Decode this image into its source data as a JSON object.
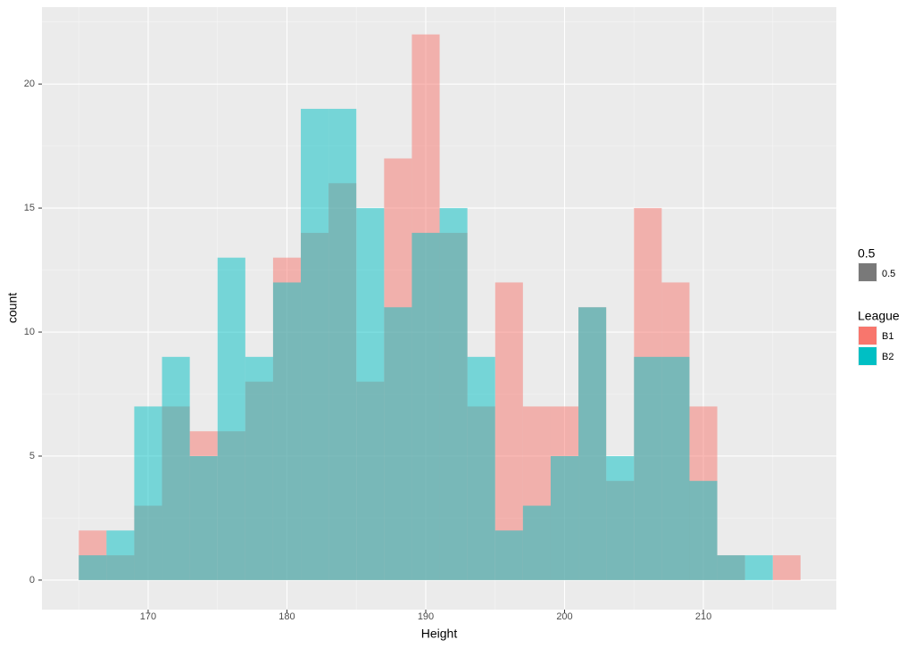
{
  "chart_data": {
    "type": "histogram",
    "x_label": "Height",
    "y_label": "count",
    "bins": [
      165,
      167,
      169,
      171,
      173,
      175,
      177,
      179,
      181,
      183,
      185,
      187,
      189,
      191,
      193,
      195,
      197,
      199,
      201,
      203,
      205,
      207,
      209,
      211,
      213,
      215,
      217
    ],
    "series": [
      {
        "name": "B1",
        "color": "#F8766D",
        "values": [
          2,
          1,
          3,
          7,
          6,
          6,
          8,
          13,
          14,
          16,
          8,
          17,
          22,
          14,
          7,
          12,
          7,
          7,
          11,
          4,
          15,
          12,
          7,
          1,
          0,
          1
        ]
      },
      {
        "name": "B2",
        "color": "#00BFC4",
        "values": [
          1,
          2,
          7,
          9,
          5,
          13,
          9,
          12,
          19,
          19,
          15,
          11,
          14,
          15,
          9,
          2,
          3,
          5,
          11,
          5,
          9,
          9,
          4,
          1,
          1,
          0
        ]
      }
    ],
    "alpha": 0.5,
    "alpha_legend_title": "0.5",
    "alpha_legend_label": "0.5",
    "legend_title": "League",
    "legend_position": "right",
    "xlim": [
      162.35,
      219.58
    ],
    "ylim": [
      -1.19,
      23.1
    ],
    "xticks": [
      170,
      180,
      190,
      200,
      210
    ],
    "yticks": [
      0,
      5,
      10,
      15,
      20
    ],
    "grid": true
  }
}
